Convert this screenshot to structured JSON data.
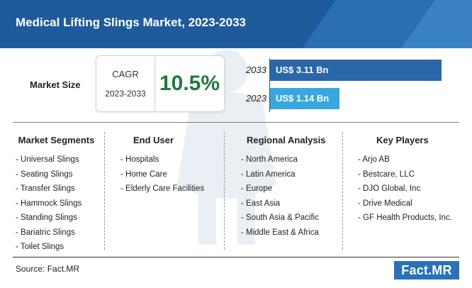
{
  "title": "Medical Lifting Slings Market, 2023-2033",
  "market_size_label": "Market Size",
  "cagr": {
    "label": "CAGR",
    "period": "2023-2033",
    "value": "10.5%"
  },
  "colors": {
    "header": "#1f5b9b",
    "bar_2033": "#2b66a8",
    "bar_2023": "#39a7df",
    "cagr_value": "#1e7a3c",
    "logo": "#2a71b8"
  },
  "chart_data": {
    "type": "bar",
    "orientation": "horizontal",
    "categories": [
      "2033",
      "2023"
    ],
    "values": [
      3.11,
      1.14
    ],
    "value_labels": [
      "US$ 3.11 Bn",
      "US$ 1.14 Bn"
    ],
    "units": "US$ Bn"
  },
  "columns": [
    {
      "heading": "Market Segments",
      "items": [
        "- Universal Slings",
        "- Seating Slings",
        "- Transfer Slings",
        "- Hammock Slings",
        "- Standing Slings",
        "- Bariatric Slings",
        "- Toilet Slings"
      ]
    },
    {
      "heading": "End User",
      "items": [
        "- Hospitals",
        "- Home Care",
        "- Elderly Care Facilities"
      ]
    },
    {
      "heading": "Regional Analysis",
      "items": [
        "- North America",
        "- Latin America",
        "- Europe",
        "- East Asia",
        "- South Asia & Pacific",
        "- Middle East & Africa"
      ]
    },
    {
      "heading": "Key Players",
      "items": [
        "- Arjo AB",
        "- Bestcare, LLC",
        "- DJO Global, Inc",
        "- Drive Medical",
        "- GF Health Products, Inc."
      ]
    }
  ],
  "source": "Source: Fact.MR",
  "logo_text": "Fact.MR"
}
